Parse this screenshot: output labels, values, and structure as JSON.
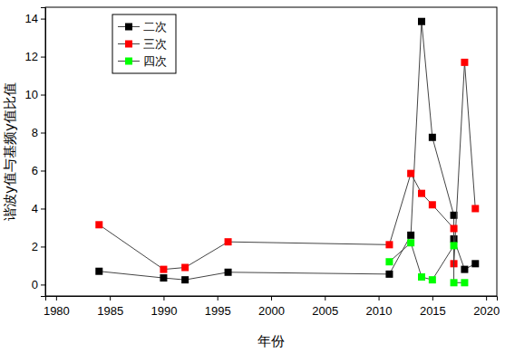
{
  "chart_data": {
    "type": "line",
    "x_label": "年份",
    "y_label": "谐波y值与基频y值比值",
    "xlim": [
      1979,
      2021
    ],
    "xticks": [
      1980,
      1985,
      1990,
      1995,
      2000,
      2005,
      2010,
      2015,
      2020
    ],
    "ylim": [
      -0.6,
      14.6
    ],
    "yticks": [
      0,
      2,
      4,
      6,
      8,
      10,
      12,
      14
    ],
    "legend": "upper-left",
    "marker": "square",
    "line_style": "solid",
    "series": [
      {
        "name": "二次",
        "color": "#000000",
        "x": [
          1984,
          1990,
          1992,
          1996,
          2011,
          2013,
          2014,
          2015,
          2017,
          2017,
          2018,
          2019
        ],
        "values": [
          0.7,
          0.35,
          0.25,
          0.65,
          0.55,
          2.6,
          13.85,
          7.75,
          3.65,
          2.4,
          0.8,
          1.1
        ]
      },
      {
        "name": "三次",
        "color": "#ff0000",
        "x": [
          1984,
          1990,
          1992,
          1996,
          2011,
          2013,
          2014,
          2015,
          2017,
          2017,
          2018,
          2019
        ],
        "values": [
          3.15,
          0.8,
          0.9,
          2.25,
          2.1,
          5.85,
          4.8,
          4.2,
          2.95,
          1.1,
          11.7,
          4.0
        ]
      },
      {
        "name": "四次",
        "color": "#00ff00",
        "x": [
          2011,
          2013,
          2014,
          2015,
          2017,
          2017,
          2018
        ],
        "values": [
          1.2,
          2.2,
          0.4,
          0.25,
          2.05,
          0.1,
          0.1
        ]
      }
    ]
  }
}
